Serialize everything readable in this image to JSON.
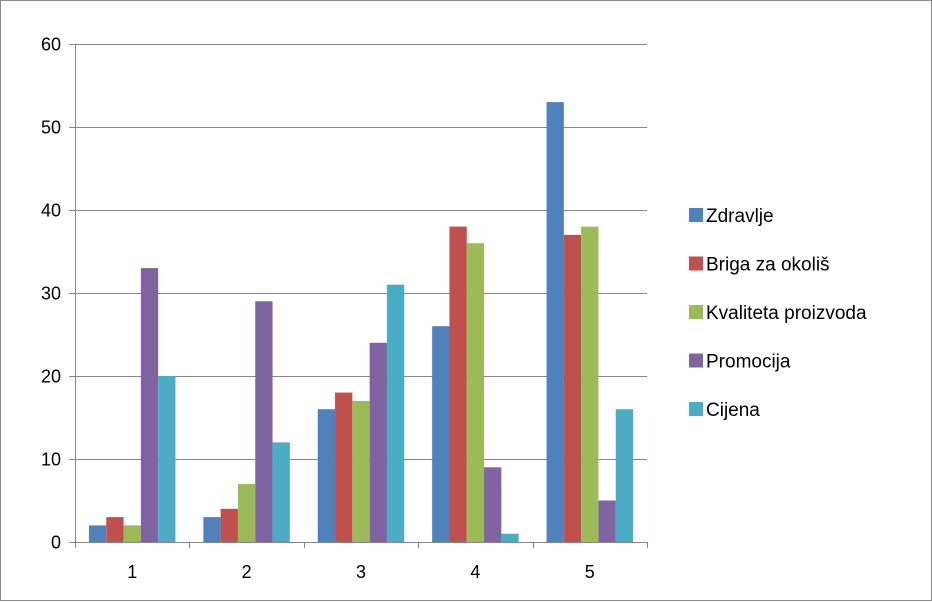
{
  "chart_data": {
    "type": "bar",
    "categories": [
      "1",
      "2",
      "3",
      "4",
      "5"
    ],
    "series": [
      {
        "name": "Zdravlje",
        "color": "#4f81bd",
        "values": [
          2,
          3,
          16,
          26,
          53
        ]
      },
      {
        "name": "Briga za okoliš",
        "color": "#c0504d",
        "values": [
          3,
          4,
          18,
          38,
          37
        ]
      },
      {
        "name": "Kvaliteta proizvoda",
        "color": "#9bbb59",
        "values": [
          2,
          7,
          17,
          36,
          38
        ]
      },
      {
        "name": "Promocija",
        "color": "#8064a2",
        "values": [
          33,
          29,
          24,
          9,
          5
        ]
      },
      {
        "name": "Cijena",
        "color": "#4bacc6",
        "values": [
          20,
          12,
          31,
          1,
          16
        ]
      }
    ],
    "ylim": [
      0,
      60
    ],
    "yticks": [
      "0",
      "10",
      "20",
      "30",
      "40",
      "50",
      "60"
    ],
    "grid": true,
    "legend_position": "right",
    "gridline_color": "#868686",
    "axis_color": "#868686"
  }
}
